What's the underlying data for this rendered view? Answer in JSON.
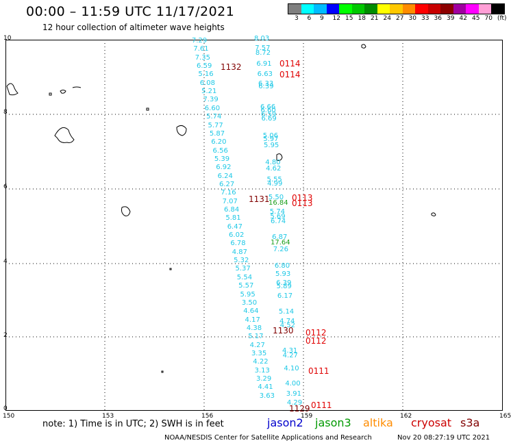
{
  "title": "00:00 – 11:59 UTC 11/17/2021",
  "subtitle": "12 hour collection of altimeter wave heights",
  "legend": {
    "colors": [
      "#7f7f7f",
      "#00ffff",
      "#00bcff",
      "#0000ff",
      "#00ff00",
      "#00c800",
      "#008c00",
      "#ffff00",
      "#ffc800",
      "#ff8c00",
      "#ff0000",
      "#c80000",
      "#8c0000",
      "#a000a0",
      "#ff00ff",
      "#ff9fd6",
      "#000000"
    ],
    "labels": [
      "3",
      "6",
      "9",
      "12",
      "15",
      "18",
      "21",
      "24",
      "27",
      "30",
      "33",
      "36",
      "39",
      "42",
      "45",
      "70",
      "(ft)"
    ]
  },
  "x_ticks": [
    "150",
    "153",
    "156",
    "159",
    "162",
    "165"
  ],
  "y_ticks": [
    "10",
    "8",
    "6",
    "4",
    "2",
    "0"
  ],
  "note": "note: 1) Time is in UTC; 2) SWH is in feet",
  "satellites": [
    {
      "name": "jason2",
      "color": "#0000cc"
    },
    {
      "name": "jason3",
      "color": "#009900"
    },
    {
      "name": "altika",
      "color": "#ff8c00"
    },
    {
      "name": "cryosat",
      "color": "#cc0000"
    },
    {
      "name": "s3a",
      "color": "#800000"
    }
  ],
  "credit": "NOAA/NESDIS Center for Satellite Applications and Research",
  "timestamp": "Nov 20 08:27:19 UTC 2021",
  "track_a": {
    "label": "1132",
    "values": [
      "7.29",
      "7.61",
      "7.35",
      "6.59",
      "5.16",
      "6.08",
      "5.21",
      "7.39",
      "6.60",
      "5.74",
      "5.77",
      "5.87",
      "6.20",
      "6.56",
      "5.39",
      "6.92",
      "6.24",
      "6.27",
      "7.16",
      "7.07",
      "6.84",
      "5.81",
      "6.47",
      "6.02",
      "6.78",
      "4.87",
      "5.32",
      "5.37",
      "5.54",
      "5.57",
      "5.95",
      "3.50",
      "4.64",
      "4.17",
      "4.38",
      "5.17",
      "4.27",
      "3.35",
      "4.22",
      "3.13",
      "3.29",
      "4.41",
      "3.63"
    ]
  },
  "track_a_label2": "1131",
  "track_a_label3": "1130",
  "track_a_label4": "1129",
  "track_b": {
    "values": [
      "8.03",
      "7.57",
      "8.72",
      "6.91",
      "6.63",
      "6.33",
      "6.39",
      "6.66",
      "6.60",
      "6.59",
      "6.69",
      "5.06",
      "5.97",
      "5.95",
      "4.80",
      "4.62",
      "5.55",
      "4.99",
      "5.50",
      "5.74",
      "5.69",
      "6.74",
      "6.87",
      "7.26",
      "6.80",
      "5.93",
      "6.39",
      "5.89",
      "6.17",
      "5.14",
      "4.74",
      "4.52",
      "4.31",
      "4.27",
      "4.10",
      "4.00",
      "3.91",
      "4.29"
    ],
    "green_values": [
      "16.84",
      "17.64"
    ]
  },
  "passes": [
    "0114",
    "0114",
    "0113",
    "0113",
    "0112",
    "0112",
    "0111",
    "0111"
  ]
}
